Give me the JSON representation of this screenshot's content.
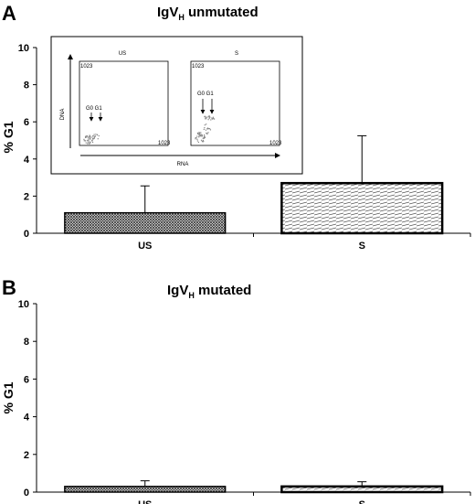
{
  "chart_data": [
    {
      "type": "bar",
      "panel": "A",
      "title": "IgVH unmutated",
      "title_main": "IgV",
      "title_sub": "H",
      "title_tail": " unmutated",
      "ylabel": "% G1",
      "xlabel": "",
      "ylim": [
        0,
        10
      ],
      "yticks": [
        "0",
        "2",
        "4",
        "6",
        "8",
        "10"
      ],
      "categories": [
        "US",
        "S"
      ],
      "values": [
        1.1,
        2.7
      ],
      "errors": [
        1.45,
        2.55
      ],
      "patterns": [
        "crosshatch",
        "horizontal-lines"
      ],
      "inset": {
        "panels": [
          {
            "label": "US",
            "y_tick_top": "1023",
            "x_tick_right": "1023",
            "arrow_labels": "G0 G1"
          },
          {
            "label": "S",
            "y_tick_top": "1023",
            "x_tick_right": "1023",
            "arrow_labels": "G0 G1"
          }
        ],
        "ylabel": "DNA",
        "xlabel": "RNA"
      }
    },
    {
      "type": "bar",
      "panel": "B",
      "title": "IgVH mutated",
      "title_main": "IgV",
      "title_sub": "H",
      "title_tail": " mutated",
      "ylabel": "% G1",
      "xlabel": "",
      "ylim": [
        0,
        10
      ],
      "yticks": [
        "0",
        "2",
        "4",
        "6",
        "8",
        "10"
      ],
      "categories": [
        "US",
        "S"
      ],
      "values": [
        0.3,
        0.3
      ],
      "errors": [
        0.3,
        0.25
      ],
      "patterns": [
        "crosshatch",
        "horizontal-lines"
      ]
    }
  ]
}
